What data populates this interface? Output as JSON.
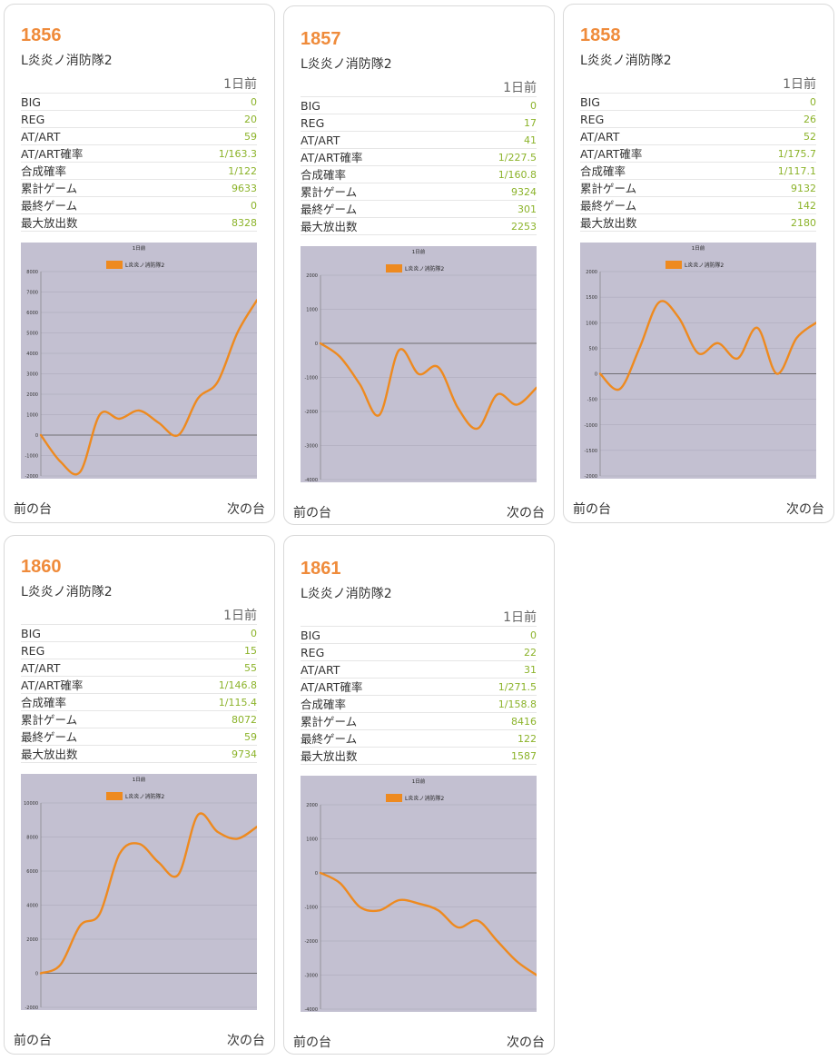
{
  "nav": {
    "prev": "前の台",
    "next": "次の台"
  },
  "stat_labels": [
    "BIG",
    "REG",
    "AT/ART",
    "AT/ART確率",
    "合成確率",
    "累計ゲーム",
    "最終ゲーム",
    "最大放出数"
  ],
  "colors": {
    "number": "#ef8b3b",
    "value": "#8cb32a",
    "chart_bg": "#c3c0d1",
    "series": "#ee8a1f"
  },
  "machines": [
    {
      "number": "1856",
      "name": "L炎炎ノ消防隊2",
      "period": "1日前",
      "stats": [
        "0",
        "20",
        "59",
        "1/163.3",
        "1/122",
        "9633",
        "0",
        "8328"
      ],
      "chart_data": {
        "type": "line",
        "title": "1日前",
        "legend": "top",
        "yticks": [
          "-2000",
          "-1000",
          "0",
          "1000",
          "2000",
          "3000",
          "4000",
          "5000",
          "6000",
          "7000",
          "8000"
        ],
        "ylim": [
          -2000,
          8000
        ],
        "series": [
          {
            "name": "L炎炎ノ消防隊2",
            "y": [
              0,
              -1300,
              -1800,
              1000,
              800,
              1200,
              600,
              0,
              1800,
              2600,
              5000,
              6600
            ]
          }
        ]
      }
    },
    {
      "number": "1857",
      "name": "L炎炎ノ消防隊2",
      "period": "1日前",
      "stats": [
        "0",
        "17",
        "41",
        "1/227.5",
        "1/160.8",
        "9324",
        "301",
        "2253"
      ],
      "chart_data": {
        "type": "line",
        "title": "1日前",
        "legend": "top",
        "yticks": [
          "-4000",
          "-3000",
          "-2000",
          "-1000",
          "0",
          "1000",
          "2000"
        ],
        "ylim": [
          -4000,
          2000
        ],
        "series": [
          {
            "name": "L炎炎ノ消防隊2",
            "y": [
              0,
              -400,
              -1200,
              -2100,
              -200,
              -900,
              -700,
              -1900,
              -2500,
              -1500,
              -1800,
              -1300
            ]
          }
        ]
      }
    },
    {
      "number": "1858",
      "name": "L炎炎ノ消防隊2",
      "period": "1日前",
      "stats": [
        "0",
        "26",
        "52",
        "1/175.7",
        "1/117.1",
        "9132",
        "142",
        "2180"
      ],
      "chart_data": {
        "type": "line",
        "title": "1日前",
        "legend": "top",
        "yticks": [
          "-2000",
          "-1500",
          "-1000",
          "-500",
          "0",
          "500",
          "1000",
          "1500",
          "2000"
        ],
        "ylim": [
          -2000,
          2000
        ],
        "series": [
          {
            "name": "L炎炎ノ消防隊2",
            "y": [
              0,
              -300,
              500,
              1400,
              1100,
              400,
              600,
              300,
              900,
              0,
              700,
              1000
            ]
          }
        ]
      }
    },
    {
      "number": "1860",
      "name": "L炎炎ノ消防隊2",
      "period": "1日前",
      "stats": [
        "0",
        "15",
        "55",
        "1/146.8",
        "1/115.4",
        "8072",
        "59",
        "9734"
      ],
      "chart_data": {
        "type": "line",
        "title": "1日前",
        "legend": "top",
        "yticks": [
          "-2000",
          "0",
          "2000",
          "4000",
          "6000",
          "8000",
          "10000"
        ],
        "ylim": [
          -2000,
          10000
        ],
        "series": [
          {
            "name": "L炎炎ノ消防隊2",
            "y": [
              0,
              500,
              2800,
              3500,
              7000,
              7600,
              6500,
              5800,
              9300,
              8300,
              7900,
              8600
            ]
          }
        ]
      }
    },
    {
      "number": "1861",
      "name": "L炎炎ノ消防隊2",
      "period": "1日前",
      "stats": [
        "0",
        "22",
        "31",
        "1/271.5",
        "1/158.8",
        "8416",
        "122",
        "1587"
      ],
      "chart_data": {
        "type": "line",
        "title": "1日前",
        "legend": "top",
        "yticks": [
          "-4000",
          "-3000",
          "-2000",
          "-1000",
          "0",
          "1000",
          "2000"
        ],
        "ylim": [
          -4000,
          2000
        ],
        "series": [
          {
            "name": "L炎炎ノ消防隊2",
            "y": [
              0,
              -300,
              -1000,
              -1100,
              -800,
              -900,
              -1100,
              -1600,
              -1400,
              -2000,
              -2600,
              -3000
            ]
          }
        ]
      }
    }
  ]
}
